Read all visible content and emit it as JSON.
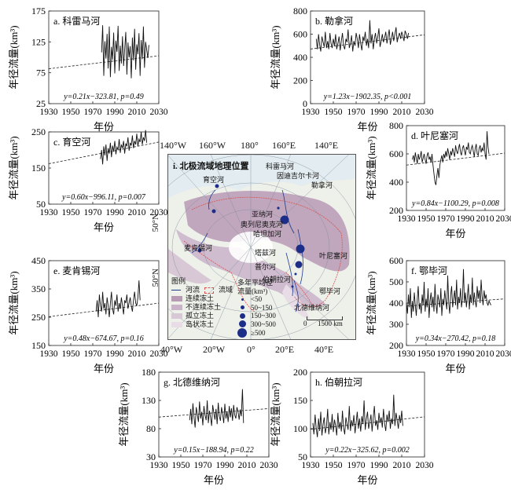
{
  "panels": [
    {
      "id": "a",
      "title": "a. 科雷马河",
      "ylabel": "年径流量(km³)",
      "xlabel": "年份",
      "equation": "y=0.21x−323.81, p=0.49",
      "chart_data": {
        "type": "line",
        "xlim": [
          1930,
          2030
        ],
        "ylim": [
          25,
          175
        ],
        "xticks": [
          1930,
          1950,
          1970,
          1990,
          2010,
          2030
        ],
        "yticks": [
          25,
          75,
          125,
          175
        ],
        "trend": {
          "slope": 0.21,
          "intercept": -323.81
        },
        "series": {
          "x_start": 1978,
          "values": [
            108,
            152,
            70,
            126,
            98,
            138,
            82,
            150,
            68,
            117,
            96,
            140,
            74,
            127,
            109,
            151,
            78,
            119,
            90,
            134,
            86,
            113,
            141,
            72,
            124,
            100,
            118,
            66,
            132,
            95,
            146,
            80,
            121,
            105,
            139,
            70,
            128,
            97,
            150,
            83,
            125,
            112,
            99,
            120
          ]
        }
      }
    },
    {
      "id": "b",
      "title": "b. 勒拿河",
      "ylabel": "年径流量(km³)",
      "xlabel": "年份",
      "equation": "y=1.23x−1902.35, p<0.001",
      "chart_data": {
        "type": "line",
        "xlim": [
          1930,
          2030
        ],
        "ylim": [
          0,
          800
        ],
        "xticks": [
          1930,
          1950,
          1970,
          1990,
          2010,
          2030
        ],
        "yticks": [
          0,
          200,
          400,
          600,
          800
        ],
        "trend": {
          "slope": 1.23,
          "intercept": -1902.35
        },
        "series": {
          "x_start": 1935,
          "values": [
            560,
            470,
            600,
            510,
            450,
            580,
            530,
            490,
            620,
            480,
            540,
            470,
            610,
            520,
            480,
            560,
            500,
            600,
            470,
            520,
            580,
            460,
            540,
            610,
            500,
            470,
            560,
            530,
            640,
            480,
            520,
            590,
            450,
            540,
            500,
            610,
            560,
            480,
            600,
            520,
            460,
            580,
            540,
            620,
            500,
            560,
            480,
            720,
            520,
            600,
            470,
            560,
            610,
            520,
            580,
            650,
            490,
            540,
            600,
            530,
            570,
            620,
            520,
            580,
            640,
            510,
            560,
            620,
            540,
            600,
            660,
            530,
            580,
            610,
            560,
            620,
            590,
            540,
            630,
            600,
            560,
            610
          ]
        }
      }
    },
    {
      "id": "c",
      "title": "c. 育空河",
      "ylabel": "年径流量(km³)",
      "xlabel": "年份",
      "equation": "y=0.60x−996.11, p=0.007",
      "chart_data": {
        "type": "line",
        "xlim": [
          1930,
          2030
        ],
        "ylim": [
          50,
          250
        ],
        "xticks": [
          1930,
          1950,
          1970,
          1990,
          2010,
          2030
        ],
        "yticks": [
          50,
          150,
          250
        ],
        "trend": {
          "slope": 0.6,
          "intercept": -996.11
        },
        "series": {
          "x_start": 1977,
          "values": [
            175,
            200,
            160,
            210,
            185,
            215,
            170,
            205,
            190,
            220,
            180,
            212,
            195,
            225,
            188,
            208,
            200,
            230,
            192,
            215,
            205,
            225,
            190,
            218,
            210,
            235,
            198,
            220,
            212,
            240,
            205,
            225,
            215,
            245,
            210,
            230,
            222,
            250,
            215,
            235,
            225,
            255,
            220
          ]
        }
      }
    },
    {
      "id": "d",
      "title": "d. 叶尼塞河",
      "ylabel": "年径流量(km³)",
      "xlabel": "年份",
      "equation": "y=0.84x−1100.29, p=0.008",
      "chart_data": {
        "type": "line",
        "xlim": [
          1930,
          2030
        ],
        "ylim": [
          200,
          800
        ],
        "xticks": [
          1930,
          1950,
          1970,
          1990,
          2010,
          2030
        ],
        "yticks": [
          200,
          400,
          600,
          800
        ],
        "trend": {
          "slope": 0.84,
          "intercept": -1100.29
        },
        "series": {
          "x_start": 1936,
          "values": [
            560,
            590,
            540,
            610,
            570,
            530,
            600,
            560,
            580,
            620,
            540,
            570,
            600,
            560,
            530,
            590,
            610,
            560,
            580,
            540,
            600,
            520,
            460,
            400,
            380,
            450,
            500,
            430,
            520,
            560,
            590,
            540,
            600,
            570,
            620,
            580,
            640,
            600,
            560,
            620,
            590,
            640,
            610,
            580,
            660,
            620,
            600,
            640,
            670,
            610,
            590,
            640,
            660,
            620,
            590,
            650,
            630,
            680,
            610,
            600,
            640,
            660,
            620,
            580,
            640,
            670,
            600,
            590,
            640,
            660,
            610,
            640,
            620,
            680,
            600,
            560,
            760,
            650,
            600
          ]
        }
      }
    },
    {
      "id": "e",
      "title": "e. 麦肯锡河",
      "ylabel": "年径流量(km³)",
      "xlabel": "年份",
      "equation": "y=0.48x−674.67, p=0.16",
      "chart_data": {
        "type": "line",
        "xlim": [
          1930,
          2030
        ],
        "ylim": [
          150,
          450
        ],
        "xticks": [
          1930,
          1950,
          1970,
          1990,
          2010,
          2030
        ],
        "yticks": [
          150,
          250,
          350,
          450
        ],
        "trend": {
          "slope": 0.48,
          "intercept": -674.67
        },
        "series": {
          "x_start": 1973,
          "values": [
            270,
            310,
            250,
            330,
            290,
            270,
            340,
            280,
            300,
            260,
            320,
            290,
            250,
            300,
            340,
            280,
            260,
            310,
            290,
            330,
            270,
            300,
            280,
            320,
            290,
            260,
            310,
            300,
            330,
            280,
            300,
            320,
            290,
            270,
            310,
            340,
            300,
            290,
            320,
            380,
            310
          ]
        }
      }
    },
    {
      "id": "f",
      "title": "f. 鄂毕河",
      "ylabel": "年径流量(km³)",
      "xlabel": "年份",
      "equation": "y=0.34x−270.42, p=0.18",
      "chart_data": {
        "type": "line",
        "xlim": [
          1930,
          2030
        ],
        "ylim": [
          200,
          600
        ],
        "xticks": [
          1930,
          1950,
          1970,
          1990,
          2010,
          2030
        ],
        "yticks": [
          200,
          300,
          400,
          500,
          600
        ],
        "trend": {
          "slope": 0.34,
          "intercept": -270.42
        },
        "series": {
          "x_start": 1930,
          "values": [
            400,
            350,
            440,
            380,
            470,
            330,
            410,
            360,
            450,
            390,
            340,
            420,
            480,
            370,
            400,
            350,
            440,
            390,
            500,
            360,
            420,
            380,
            470,
            330,
            410,
            450,
            380,
            430,
            360,
            490,
            400,
            350,
            440,
            410,
            380,
            470,
            340,
            420,
            390,
            460,
            410,
            370,
            530,
            400,
            350,
            440,
            480,
            380,
            420,
            460,
            390,
            510,
            370,
            430,
            400,
            470,
            380,
            420,
            560,
            400,
            450,
            380,
            430,
            490,
            370,
            440,
            400,
            520,
            390,
            450,
            410,
            380,
            480,
            420,
            460,
            400,
            510,
            430,
            390,
            460,
            420,
            440,
            400,
            390,
            410,
            400,
            390
          ]
        }
      }
    },
    {
      "id": "g",
      "title": "g. 北德维纳河",
      "ylabel": "年径流量(km³)",
      "xlabel": "年份",
      "equation": "y=0.15x−188.94, p=0.22",
      "chart_data": {
        "type": "line",
        "xlim": [
          1930,
          2030
        ],
        "ylim": [
          30,
          180
        ],
        "xticks": [
          1930,
          1950,
          1970,
          1990,
          2010,
          2030
        ],
        "yticks": [
          30,
          80,
          130,
          180
        ],
        "trend": {
          "slope": 0.15,
          "intercept": -188.94
        },
        "series": {
          "x_start": 1958,
          "values": [
            95,
            115,
            88,
            125,
            100,
            82,
            118,
            105,
            92,
            128,
            98,
            110,
            86,
            120,
            104,
            95,
            130,
            90,
            112,
            100,
            85,
            122,
            108,
            96,
            115,
            88,
            126,
            102,
            94,
            118,
            106,
            90,
            124,
            98,
            110,
            92,
            120,
            100,
            116,
            94,
            122,
            104,
            98,
            118,
            110,
            96,
            114,
            102,
            150,
            90
          ]
        }
      }
    },
    {
      "id": "h",
      "title": "h. 伯朝拉河",
      "ylabel": "年径流量(km³)",
      "xlabel": "年份",
      "equation": "y=0.22x−325.62, p=0.002",
      "chart_data": {
        "type": "line",
        "xlim": [
          1930,
          2030
        ],
        "ylim": [
          50,
          200
        ],
        "xticks": [
          1930,
          1950,
          1970,
          1990,
          2010,
          2030
        ],
        "yticks": [
          50,
          100,
          150,
          200
        ],
        "trend": {
          "slope": 0.22,
          "intercept": -325.62
        },
        "series": {
          "x_start": 1932,
          "values": [
            110,
            90,
            125,
            100,
            85,
            118,
            96,
            130,
            88,
            108,
            120,
            92,
            104,
            135,
            90,
            112,
            98,
            126,
            94,
            116,
            105,
            88,
            128,
            100,
            112,
            95,
            132,
            102,
            90,
            120,
            108,
            98,
            140,
            96,
            115,
            104,
            124,
            92,
            110,
            130,
            100,
            118,
            95,
            122,
            108,
            150,
            98,
            118,
            130,
            100,
            112,
            125,
            95,
            120,
            140,
            105,
            115,
            98,
            128,
            110,
            120,
            102,
            135,
            108,
            96,
            125,
            112,
            132,
            100,
            118,
            108,
            160,
            105,
            128,
            115,
            100,
            124,
            110,
            132,
            105
          ]
        }
      }
    }
  ],
  "map": {
    "title": "i. 北极流域地理位置",
    "lon_top": [
      "140°W",
      "160°W",
      "180°",
      "160°E",
      "140°E"
    ],
    "lon_bottom": [
      "40°W",
      "20°W",
      "0°",
      "20°E",
      "40°E"
    ],
    "lat_left": [
      "50°N",
      "50°N"
    ],
    "rivers": [
      "科雷马河",
      "因迪吉尔卡河",
      "勒拿河",
      "育空河",
      "亚纳河",
      "奥列尼奥克河",
      "哈坦加河",
      "麦肯锡河",
      "塔兹河",
      "叶尼塞河",
      "普尔河",
      "伯朝拉河",
      "鄂毕河",
      "北德维纳河"
    ],
    "legend_title": "图例",
    "legend_river": "河流",
    "legend_basin": "流域",
    "legend_permafrost": [
      "连续冻土",
      "不连续冻土",
      "孤立冻土",
      "岛状冻土"
    ],
    "legend_flow_title": "多年平均径流量(km³)",
    "legend_flow": [
      "<50",
      "50~150",
      "150~300",
      "300~500",
      "≥500"
    ],
    "scale_labels": [
      "0",
      "1500 km"
    ],
    "colors": {
      "continuous": "#b89ab5",
      "discontinuous": "#c9b3c9",
      "isolated": "#d8c8d6",
      "sporadic": "#e8dce6",
      "river": "#1f3b8f",
      "basin": "#d9534f",
      "dot": "#1c2e88"
    }
  }
}
